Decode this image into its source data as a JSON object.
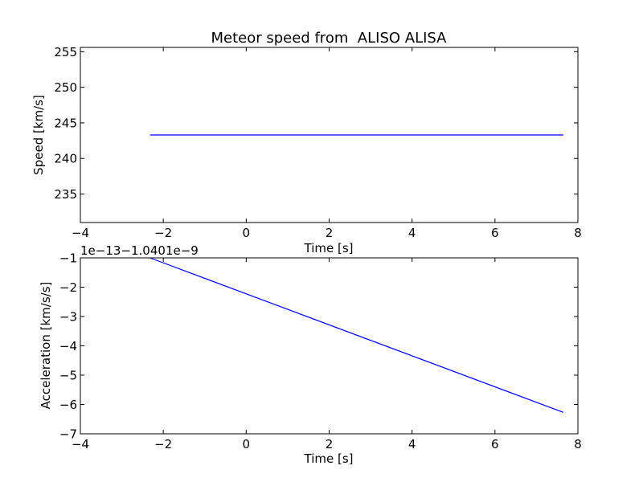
{
  "chart_data": [
    {
      "type": "line",
      "title": "Meteor speed from  ALISO ALISA",
      "xlabel": "Time [s]",
      "ylabel": "Speed [km/s]",
      "xlim": [
        -4,
        8
      ],
      "ylim": [
        231,
        255.6
      ],
      "xticks": [
        -4,
        -2,
        0,
        2,
        4,
        6,
        8
      ],
      "xtick_labels": [
        "−4",
        "−2",
        "0",
        "2",
        "4",
        "6",
        "8"
      ],
      "yticks": [
        235,
        240,
        245,
        250,
        255
      ],
      "ytick_labels": [
        "235",
        "240",
        "245",
        "250",
        "255"
      ],
      "offset_label": "",
      "color": "#0000ff",
      "grid": false,
      "series": [
        {
          "x": [
            -2.32,
            7.65
          ],
          "y": [
            243.3,
            243.3
          ]
        }
      ]
    },
    {
      "type": "line",
      "title": "",
      "xlabel": "Time [s]",
      "ylabel": "Acceleration [km/s/s]",
      "xlim": [
        -4,
        8
      ],
      "ylim": [
        -7,
        -1
      ],
      "xticks": [
        -4,
        -2,
        0,
        2,
        4,
        6,
        8
      ],
      "xtick_labels": [
        "−4",
        "−2",
        "0",
        "2",
        "4",
        "6",
        "8"
      ],
      "yticks": [
        -7,
        -6,
        -5,
        -4,
        -3,
        -2,
        -1
      ],
      "ytick_labels": [
        "−7",
        "−6",
        "−5",
        "−4",
        "−3",
        "−2",
        "−1"
      ],
      "offset_label": "1e−13−1.0401e−9",
      "color": "#0000ff",
      "grid": false,
      "series": [
        {
          "x": [
            -2.32,
            7.65
          ],
          "y": [
            -1.0,
            -6.27
          ]
        }
      ]
    }
  ]
}
